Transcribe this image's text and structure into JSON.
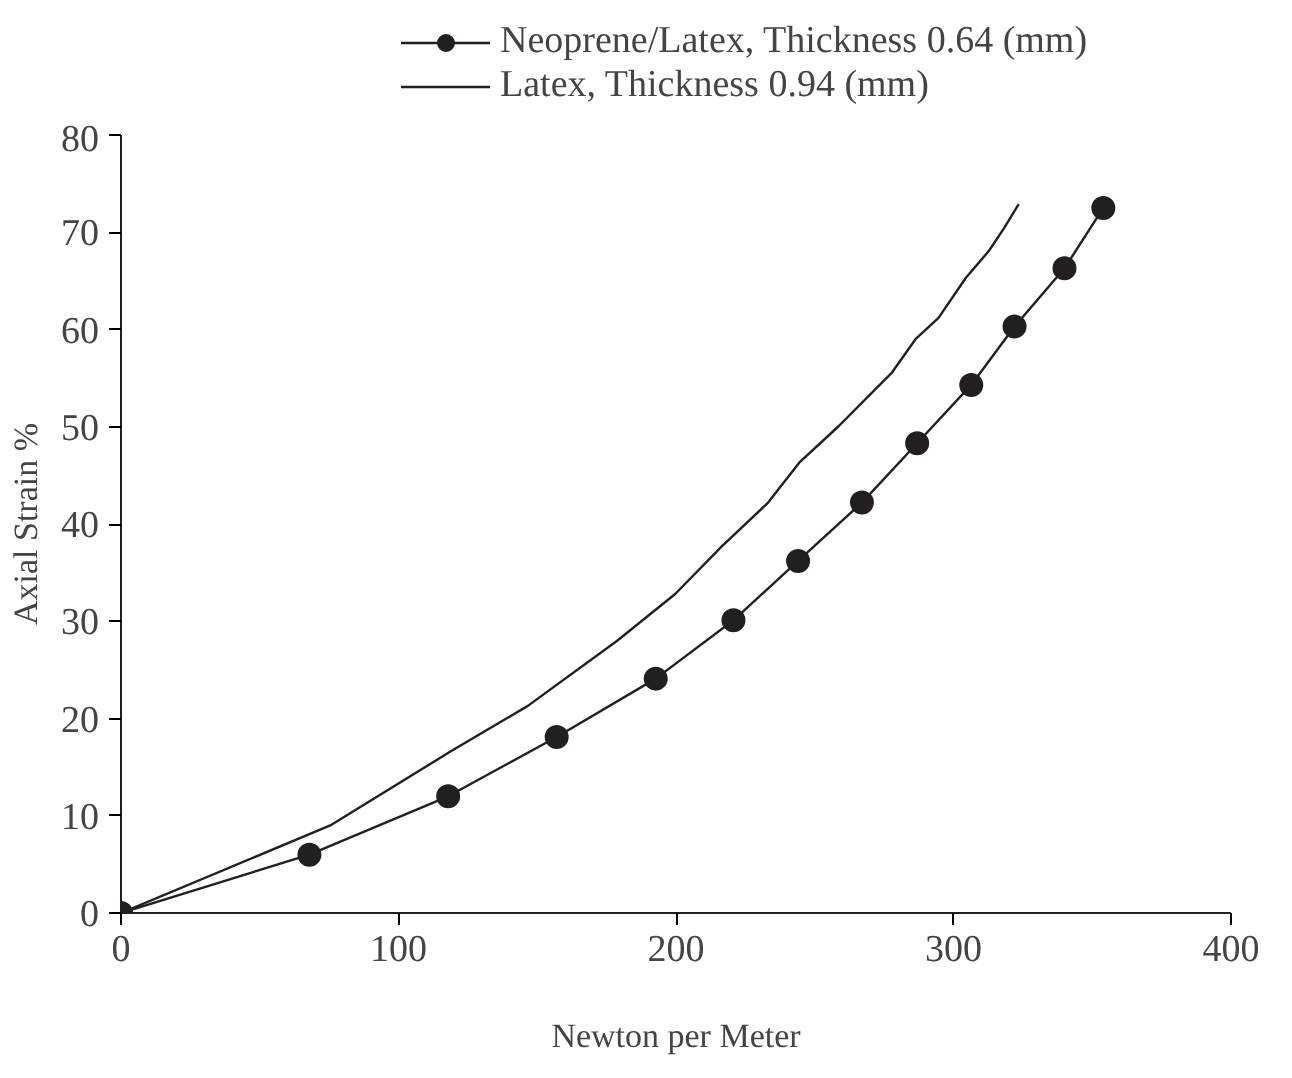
{
  "chart_data": {
    "type": "line",
    "xlabel": "Newton per Meter",
    "ylabel": "Axial Strain %",
    "xlim": [
      0,
      400
    ],
    "xticks": [
      0,
      100,
      200,
      300,
      400
    ],
    "ylim": [
      0,
      80
    ],
    "yticks": [
      0,
      10,
      20,
      30,
      40,
      50,
      60,
      70,
      80
    ],
    "grid": false,
    "legend": "top",
    "series": [
      {
        "name": "Neoprene/Latex, Thickness 0.64 (mm)",
        "color": "#231f20",
        "marker": "circle",
        "x": [
          0,
          67.9,
          117.9,
          157,
          192.7,
          220.7,
          244,
          267,
          286.9,
          306.4,
          322,
          340,
          354
        ],
        "values": [
          0,
          6.0,
          12.0,
          18.1,
          24.1,
          30.1,
          36.2,
          42.2,
          48.3,
          54.3,
          60.3,
          66.3,
          72.5
        ]
      },
      {
        "name": "Latex, Thickness 0.94 (mm)",
        "color": "#231f20",
        "marker": "none",
        "x": [
          0,
          75.4,
          118.7,
          146.6,
          178.8,
          199.7,
          216.5,
          233.2,
          244.4,
          258.4,
          277.9,
          286.3,
          294.6,
          304.4,
          312.8,
          318.4,
          323.5
        ],
        "values": [
          0,
          9.0,
          16.6,
          21.3,
          28.0,
          32.8,
          37.7,
          42.2,
          46.3,
          50.0,
          55.6,
          59.0,
          61.2,
          65.3,
          68.1,
          70.5,
          72.9
        ]
      }
    ]
  }
}
